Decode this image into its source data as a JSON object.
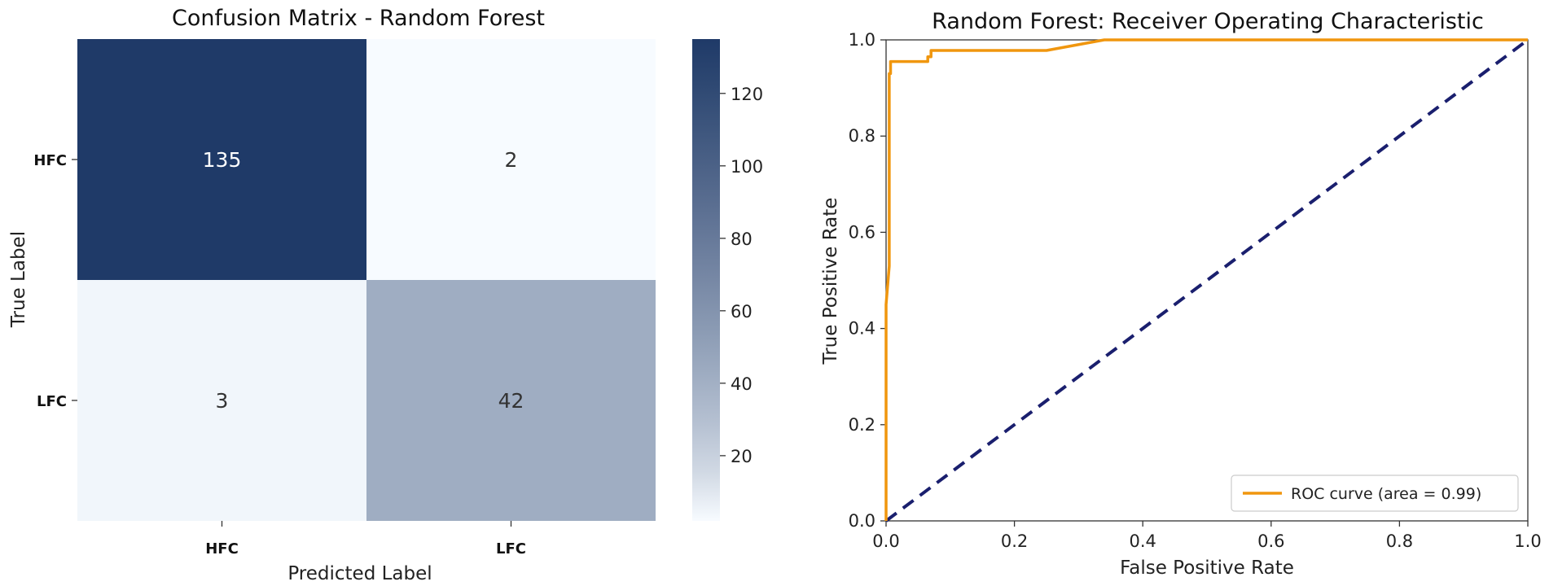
{
  "chart_data": [
    {
      "type": "heatmap",
      "title": "Confusion Matrix - Random Forest",
      "xlabel": "Predicted Label",
      "ylabel": "True Label",
      "x_categories": [
        "HFC",
        "LFC"
      ],
      "y_categories": [
        "HFC",
        "LFC"
      ],
      "values": [
        [
          135,
          2
        ],
        [
          3,
          42
        ]
      ],
      "colorbar": {
        "ticks": [
          20,
          40,
          60,
          80,
          100,
          120
        ],
        "range": [
          2,
          135
        ]
      },
      "colors": {
        "low": "#f7fbff",
        "high": "#1f3a68",
        "text_dark": "#333333",
        "text_light": "#ffffff"
      }
    },
    {
      "type": "line",
      "title": "Random Forest: Receiver Operating Characteristic",
      "xlabel": "False Positive Rate",
      "ylabel": "True Positive Rate",
      "xlim": [
        0.0,
        1.0
      ],
      "ylim": [
        0.0,
        1.0
      ],
      "xticks": [
        "0.0",
        "0.2",
        "0.4",
        "0.6",
        "0.8",
        "1.0"
      ],
      "yticks": [
        "0.0",
        "0.2",
        "0.4",
        "0.6",
        "0.8",
        "1.0"
      ],
      "grid": false,
      "legend_position": "lower-right",
      "series": [
        {
          "name": "ROC curve (area = 0.99)",
          "color": "#f0960e",
          "style": "solid",
          "x": [
            0.0,
            0.0,
            0.005,
            0.005,
            0.007,
            0.007,
            0.012,
            0.012,
            0.065,
            0.065,
            0.07,
            0.07,
            0.25,
            0.34,
            1.0
          ],
          "y": [
            0.0,
            0.45,
            0.53,
            0.93,
            0.93,
            0.955,
            0.955,
            0.955,
            0.955,
            0.965,
            0.965,
            0.978,
            0.978,
            1.0,
            1.0
          ]
        },
        {
          "name": "",
          "color": "#1a1f6e",
          "style": "dashed",
          "x": [
            0.0,
            1.0
          ],
          "y": [
            0.0,
            1.0
          ]
        }
      ]
    }
  ]
}
